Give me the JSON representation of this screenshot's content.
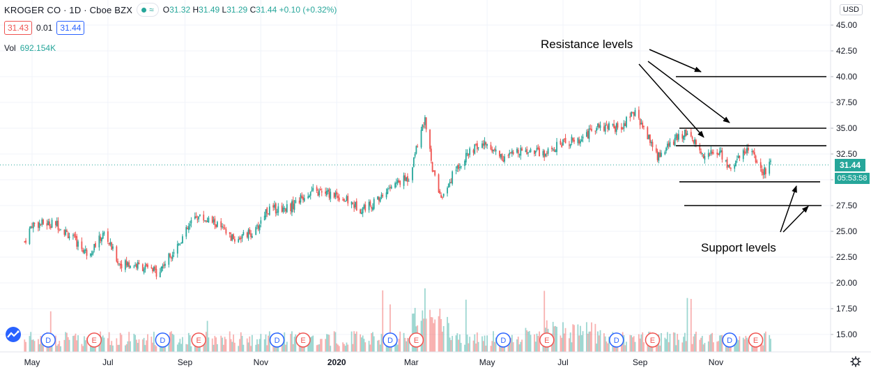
{
  "legend": {
    "symbol": "KROGER CO · 1D · Cboe BZX",
    "open_label": "O",
    "open": "31.32",
    "high_label": "H",
    "high": "31.49",
    "low_label": "L",
    "low": "31.29",
    "close_label": "C",
    "close": "31.44",
    "change": "+0.10 (+0.32%)",
    "bid": "31.43",
    "spread": "0.01",
    "ask": "31.44",
    "vol_label": "Vol",
    "vol": "692.154K"
  },
  "currency": "USD",
  "last_price_tag": "31.44",
  "countdown": "05:53:58",
  "annotations": {
    "resistance": "Resistance levels",
    "support": "Support levels"
  },
  "colors": {
    "up": "#26a69a",
    "down": "#ef5350",
    "grid": "#f0f3fa",
    "line": "#000000"
  },
  "chart_data": {
    "type": "candlestick",
    "title": "KROGER CO · 1D · Cboe BZX",
    "xlabel": "",
    "ylabel": "",
    "ylim": [
      13.5,
      47.5
    ],
    "yticks": [
      "15.00",
      "17.50",
      "20.00",
      "22.50",
      "25.00",
      "27.50",
      "30.00",
      "32.50",
      "35.00",
      "37.50",
      "40.00",
      "42.50",
      "45.00"
    ],
    "xticks": [
      "May",
      "Jul",
      "Sep",
      "Nov",
      "2020",
      "Mar",
      "May",
      "Jul",
      "Sep",
      "Nov"
    ],
    "price_path": [
      [
        "2019-04-25",
        24.0
      ],
      [
        "2019-05-01",
        25.7
      ],
      [
        "2019-05-20",
        25.8
      ],
      [
        "2019-06-01",
        24.5
      ],
      [
        "2019-06-15",
        22.8
      ],
      [
        "2019-06-28",
        24.8
      ],
      [
        "2019-07-10",
        21.9
      ],
      [
        "2019-07-25",
        21.7
      ],
      [
        "2019-08-10",
        21.0
      ],
      [
        "2019-08-25",
        23.5
      ],
      [
        "2019-09-10",
        26.5
      ],
      [
        "2019-09-25",
        25.8
      ],
      [
        "2019-10-10",
        24.2
      ],
      [
        "2019-10-28",
        25.0
      ],
      [
        "2019-11-05",
        27.0
      ],
      [
        "2019-11-25",
        27.4
      ],
      [
        "2019-12-10",
        28.8
      ],
      [
        "2019-12-31",
        28.6
      ],
      [
        "2020-01-20",
        27.2
      ],
      [
        "2020-02-01",
        27.8
      ],
      [
        "2020-02-15",
        29.5
      ],
      [
        "2020-02-28",
        30.2
      ],
      [
        "2020-03-05",
        33.0
      ],
      [
        "2020-03-12",
        36.0
      ],
      [
        "2020-03-18",
        31.0
      ],
      [
        "2020-03-25",
        28.0
      ],
      [
        "2020-04-05",
        31.0
      ],
      [
        "2020-04-20",
        33.0
      ],
      [
        "2020-05-01",
        33.5
      ],
      [
        "2020-05-15",
        32.0
      ],
      [
        "2020-05-28",
        33.0
      ],
      [
        "2020-06-15",
        32.5
      ],
      [
        "2020-06-30",
        33.5
      ],
      [
        "2020-07-15",
        34.0
      ],
      [
        "2020-07-31",
        35.2
      ],
      [
        "2020-08-15",
        35.0
      ],
      [
        "2020-08-28",
        36.5
      ],
      [
        "2020-09-02",
        35.5
      ],
      [
        "2020-09-10",
        33.5
      ],
      [
        "2020-09-15",
        32.2
      ],
      [
        "2020-09-30",
        34.0
      ],
      [
        "2020-10-10",
        34.8
      ],
      [
        "2020-10-20",
        32.5
      ],
      [
        "2020-11-05",
        32.6
      ],
      [
        "2020-11-12",
        31.0
      ],
      [
        "2020-11-25",
        33.0
      ],
      [
        "2020-12-01",
        32.5
      ],
      [
        "2020-12-08",
        30.5
      ],
      [
        "2020-12-15",
        31.44
      ]
    ],
    "levels": {
      "resistance": [
        40.0,
        35.0,
        33.3
      ],
      "support": [
        29.8,
        27.5
      ]
    },
    "events": [
      {
        "type": "D",
        "date": "2019-05-14"
      },
      {
        "type": "E",
        "date": "2019-06-20"
      },
      {
        "type": "D",
        "date": "2019-08-14"
      },
      {
        "type": "E",
        "date": "2019-09-12"
      },
      {
        "type": "D",
        "date": "2019-11-14"
      },
      {
        "type": "E",
        "date": "2019-12-05"
      },
      {
        "type": "D",
        "date": "2020-02-13"
      },
      {
        "type": "E",
        "date": "2020-03-05"
      },
      {
        "type": "D",
        "date": "2020-05-14"
      },
      {
        "type": "E",
        "date": "2020-06-18"
      },
      {
        "type": "D",
        "date": "2020-08-13"
      },
      {
        "type": "E",
        "date": "2020-09-11"
      },
      {
        "type": "D",
        "date": "2020-11-12"
      },
      {
        "type": "E",
        "date": "2020-12-03"
      }
    ],
    "volume": "per-bar volume histogram, rising sharply around Mar 2020 and Jun–Jul 2020 and Dec 2020",
    "grid": true
  }
}
